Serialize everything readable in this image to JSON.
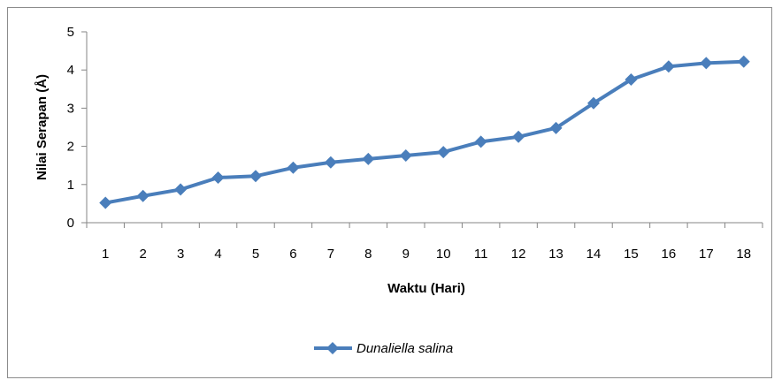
{
  "chart_data": {
    "type": "line",
    "x": [
      1,
      2,
      3,
      4,
      5,
      6,
      7,
      8,
      9,
      10,
      11,
      12,
      13,
      14,
      15,
      16,
      17,
      18
    ],
    "series": [
      {
        "name": "Dunaliella salina",
        "values": [
          0.52,
          0.7,
          0.87,
          1.18,
          1.22,
          1.44,
          1.58,
          1.67,
          1.76,
          1.85,
          2.12,
          2.25,
          2.48,
          3.13,
          3.75,
          4.09,
          4.18,
          4.22
        ],
        "color": "#4a7ebb"
      }
    ],
    "xlabel": "Waktu (Hari)",
    "ylabel": "Nilai Serapan (Å)",
    "ylim": [
      0,
      5
    ],
    "yticks": [
      0,
      1,
      2,
      3,
      4,
      5
    ],
    "xticks": [
      "1",
      "2",
      "3",
      "4",
      "5",
      "6",
      "7",
      "8",
      "9",
      "10",
      "11",
      "12",
      "13",
      "14",
      "15",
      "16",
      "17",
      "18"
    ],
    "grid": false,
    "legend_position": "bottom",
    "marker": "diamond"
  }
}
